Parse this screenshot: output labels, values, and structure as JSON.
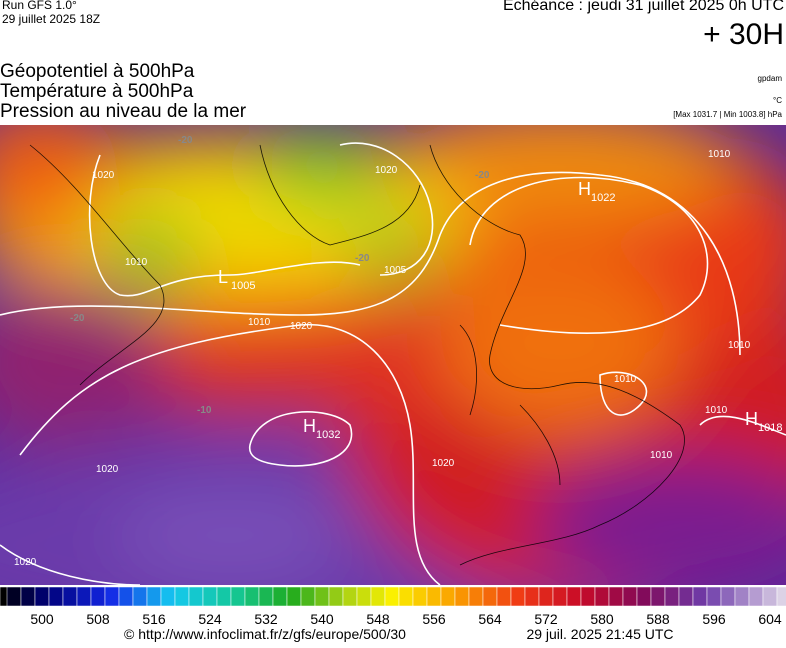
{
  "header": {
    "run": "Run GFS 1.0°",
    "date": "29 juillet 2025 18Z",
    "echeance": "Echéance : jeudi 31 juillet 2025 0h UTC",
    "lead": "+ 30H"
  },
  "titles": [
    "Géopotentiel à 500hPa",
    "Température à 500hPa",
    "Pression au niveau de la mer"
  ],
  "units": {
    "geopotential": "gpdam",
    "temperature": "°C",
    "pressure": "[Max 1031.7 | Min 1003.8] hPa"
  },
  "map": {
    "centers": [
      {
        "letter": "H",
        "value": 1022
      },
      {
        "letter": "L",
        "value": 1005
      },
      {
        "letter": "H",
        "value": 1032
      },
      {
        "letter": "H",
        "value": 1018
      }
    ],
    "contour_labels": [
      -20,
      1020,
      -20,
      1010,
      1010,
      -20,
      1005,
      -20,
      1010,
      1020,
      -10,
      1010,
      1010,
      1020,
      1020,
      1010,
      1020,
      1010,
      1020
    ]
  },
  "colorbar": {
    "labels": [
      500,
      508,
      516,
      524,
      532,
      540,
      548,
      556,
      564,
      572,
      580,
      588,
      596,
      604
    ]
  },
  "footer": {
    "url": "© http://www.infoclimat.fr/z/gfs/europe/500/30",
    "time": "29 juil. 2025 21:45 UTC"
  }
}
